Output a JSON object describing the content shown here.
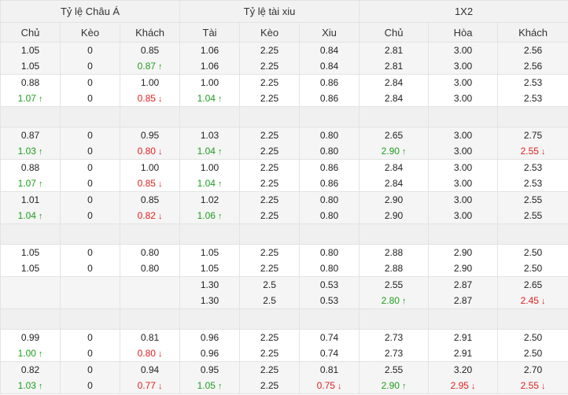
{
  "headers": {
    "group": [
      "Tỷ lệ Châu Á",
      "Tỷ lệ tài xiu",
      "1X2"
    ],
    "columns": [
      "Chủ",
      "Kèo",
      "Khách",
      "Tài",
      "Kèo",
      "Xiu",
      "Chủ",
      "Hòa",
      "Khách"
    ]
  },
  "colors": {
    "up": "#1e9e1e",
    "down": "#e02020",
    "header_bg": "#f2f2f2",
    "alt_bg": "#f5f5f5"
  },
  "icons": {
    "up": "arrow-up-icon",
    "down": "arrow-down-icon"
  },
  "rows": [
    {
      "type": "data",
      "cells": [
        [
          "1.05",
          "1.05"
        ],
        [
          "0",
          "0"
        ],
        [
          "0.85",
          "0.87"
        ],
        [
          "1.06",
          "1.06"
        ],
        [
          "2.25",
          "2.25"
        ],
        [
          "0.84",
          "0.84"
        ],
        [
          "2.81",
          "2.81"
        ],
        [
          "3.00",
          "3.00"
        ],
        [
          "2.56",
          "2.56"
        ]
      ],
      "marks": {
        "2": "up"
      }
    },
    {
      "type": "data",
      "cells": [
        [
          "0.88",
          "1.07"
        ],
        [
          "0",
          "0"
        ],
        [
          "1.00",
          "0.85"
        ],
        [
          "1.00",
          "1.04"
        ],
        [
          "2.25",
          "2.25"
        ],
        [
          "0.86",
          "0.86"
        ],
        [
          "2.84",
          "2.84"
        ],
        [
          "3.00",
          "3.00"
        ],
        [
          "2.53",
          "2.53"
        ]
      ],
      "marks": {
        "0": "up",
        "2": "down",
        "3": "up"
      }
    },
    {
      "type": "gap"
    },
    {
      "type": "data",
      "cells": [
        [
          "0.87",
          "1.03"
        ],
        [
          "0",
          "0"
        ],
        [
          "0.95",
          "0.80"
        ],
        [
          "1.03",
          "1.04"
        ],
        [
          "2.25",
          "2.25"
        ],
        [
          "0.80",
          "0.80"
        ],
        [
          "2.65",
          "2.90"
        ],
        [
          "3.00",
          "3.00"
        ],
        [
          "2.75",
          "2.55"
        ]
      ],
      "marks": {
        "0": "up",
        "2": "down",
        "3": "up",
        "6": "up",
        "8": "down"
      }
    },
    {
      "type": "data",
      "cells": [
        [
          "0.88",
          "1.07"
        ],
        [
          "0",
          "0"
        ],
        [
          "1.00",
          "0.85"
        ],
        [
          "1.00",
          "1.04"
        ],
        [
          "2.25",
          "2.25"
        ],
        [
          "0.86",
          "0.86"
        ],
        [
          "2.84",
          "2.84"
        ],
        [
          "3.00",
          "3.00"
        ],
        [
          "2.53",
          "2.53"
        ]
      ],
      "marks": {
        "0": "up",
        "2": "down",
        "3": "up"
      }
    },
    {
      "type": "data",
      "cells": [
        [
          "1.01",
          "1.04"
        ],
        [
          "0",
          "0"
        ],
        [
          "0.85",
          "0.82"
        ],
        [
          "1.02",
          "1.06"
        ],
        [
          "2.25",
          "2.25"
        ],
        [
          "0.80",
          "0.80"
        ],
        [
          "2.90",
          "2.90"
        ],
        [
          "3.00",
          "3.00"
        ],
        [
          "2.55",
          "2.55"
        ]
      ],
      "marks": {
        "0": "up",
        "2": "down",
        "3": "up"
      }
    },
    {
      "type": "gap"
    },
    {
      "type": "data",
      "cells": [
        [
          "1.05",
          "1.05"
        ],
        [
          "0",
          "0"
        ],
        [
          "0.80",
          "0.80"
        ],
        [
          "1.05",
          "1.05"
        ],
        [
          "2.25",
          "2.25"
        ],
        [
          "0.80",
          "0.80"
        ],
        [
          "2.88",
          "2.88"
        ],
        [
          "2.90",
          "2.90"
        ],
        [
          "2.50",
          "2.50"
        ]
      ],
      "marks": {}
    },
    {
      "type": "data",
      "cells": [
        [
          "",
          ""
        ],
        [
          "",
          ""
        ],
        [
          "",
          ""
        ],
        [
          "1.30",
          "1.30"
        ],
        [
          "2.5",
          "2.5"
        ],
        [
          "0.53",
          "0.53"
        ],
        [
          "2.55",
          "2.80"
        ],
        [
          "2.87",
          "2.87"
        ],
        [
          "2.65",
          "2.45"
        ]
      ],
      "marks": {
        "6": "up",
        "8": "down"
      }
    },
    {
      "type": "gap"
    },
    {
      "type": "data",
      "cells": [
        [
          "0.99",
          "1.00"
        ],
        [
          "0",
          "0"
        ],
        [
          "0.81",
          "0.80"
        ],
        [
          "0.96",
          "0.96"
        ],
        [
          "2.25",
          "2.25"
        ],
        [
          "0.74",
          "0.74"
        ],
        [
          "2.73",
          "2.73"
        ],
        [
          "2.91",
          "2.91"
        ],
        [
          "2.50",
          "2.50"
        ]
      ],
      "marks": {
        "0": "up",
        "2": "down"
      }
    },
    {
      "type": "data",
      "cells": [
        [
          "0.82",
          "1.03"
        ],
        [
          "0",
          "0"
        ],
        [
          "0.94",
          "0.77"
        ],
        [
          "0.95",
          "1.05"
        ],
        [
          "2.25",
          "2.25"
        ],
        [
          "0.81",
          "0.75"
        ],
        [
          "2.55",
          "2.90"
        ],
        [
          "3.20",
          "2.95"
        ],
        [
          "2.70",
          "2.55"
        ]
      ],
      "marks": {
        "0": "up",
        "2": "down",
        "3": "up",
        "5": "down",
        "6": "up",
        "7": "down",
        "8": "down"
      }
    }
  ]
}
